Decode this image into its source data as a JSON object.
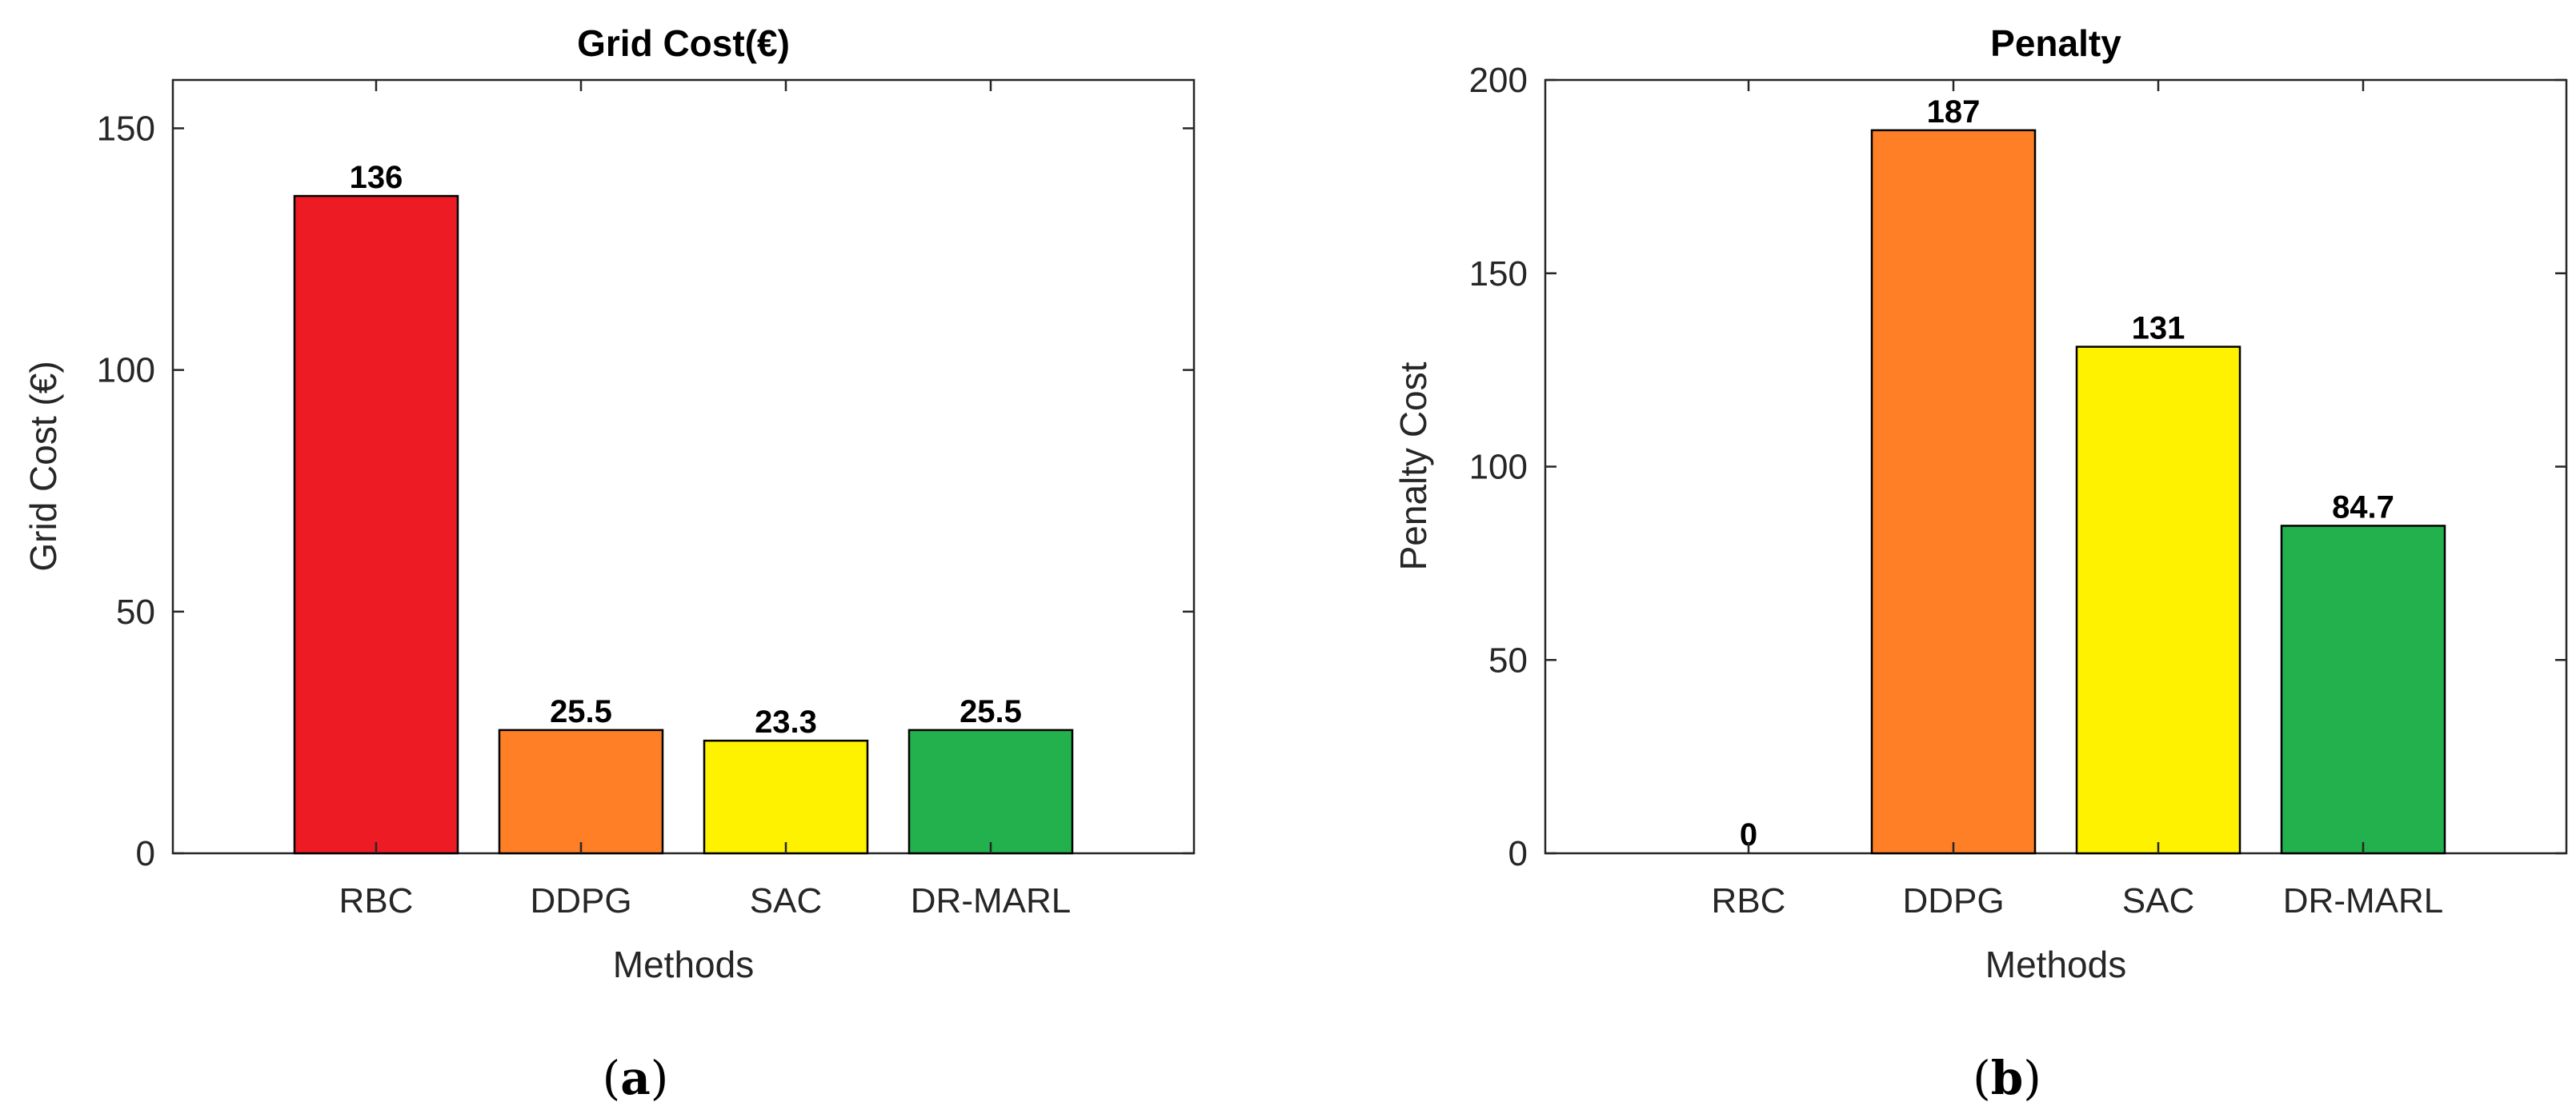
{
  "chart_data": [
    {
      "type": "bar",
      "title": "Grid Cost(€)",
      "xlabel": "Methods",
      "ylabel": "Grid Cost (€)",
      "categories": [
        "RBC",
        "DDPG",
        "SAC",
        "DR-MARL"
      ],
      "values": [
        136,
        25.5,
        23.3,
        25.5
      ],
      "value_labels": [
        "136",
        "25.5",
        "23.3",
        "25.5"
      ],
      "colors": [
        "#ed1c24",
        "#ff7f27",
        "#fff200",
        "#22b14c"
      ],
      "ylim": [
        0,
        160
      ],
      "yticks": [
        0,
        50,
        100,
        150
      ],
      "ytick_labels": [
        "0",
        "50",
        "100",
        "150"
      ],
      "grid": false,
      "caption_letter": "a"
    },
    {
      "type": "bar",
      "title": "Penalty",
      "xlabel": "Methods",
      "ylabel": "Penalty Cost",
      "categories": [
        "RBC",
        "DDPG",
        "SAC",
        "DR-MARL"
      ],
      "values": [
        0,
        187,
        131,
        84.7
      ],
      "value_labels": [
        "0",
        "187",
        "131",
        "84.7"
      ],
      "colors": [
        "#ed1c24",
        "#ff7f27",
        "#fff200",
        "#22b14c"
      ],
      "ylim": [
        0,
        200
      ],
      "yticks": [
        0,
        50,
        100,
        150,
        200
      ],
      "ytick_labels": [
        "0",
        "50",
        "100",
        "150",
        "200"
      ],
      "grid": false,
      "caption_letter": "b"
    }
  ]
}
